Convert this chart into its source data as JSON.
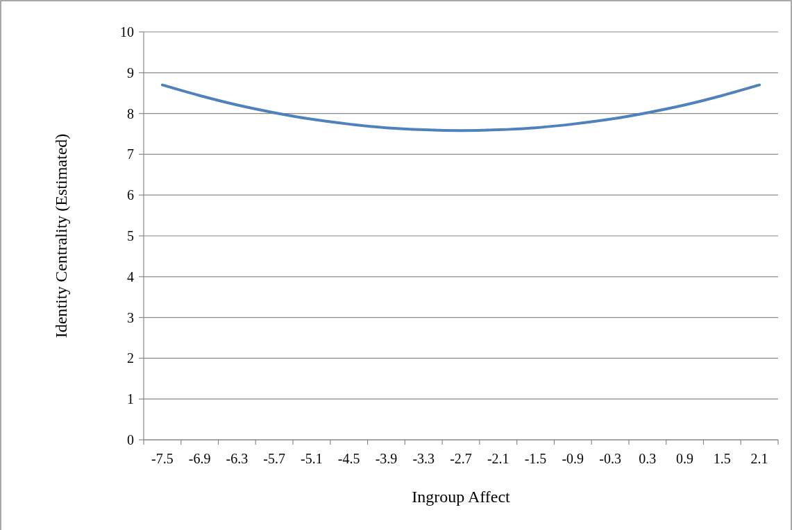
{
  "chart_data": {
    "type": "line",
    "xlabel": "Ingroup Affect",
    "ylabel": "Identity Centrality (Estimated)",
    "categories": [
      "-7.5",
      "-6.9",
      "-6.3",
      "-5.7",
      "-5.1",
      "-4.5",
      "-3.9",
      "-3.3",
      "-2.7",
      "-2.1",
      "-1.5",
      "-0.9",
      "-0.3",
      "0.3",
      "0.9",
      "1.5",
      "2.1"
    ],
    "series": [
      {
        "color": "#4f81bd",
        "values": [
          8.7,
          8.44,
          8.21,
          8.02,
          7.86,
          7.74,
          7.65,
          7.6,
          7.58,
          7.6,
          7.65,
          7.74,
          7.86,
          8.02,
          8.21,
          8.44,
          8.7
        ]
      }
    ],
    "ylim": [
      0,
      10
    ],
    "yticks": [
      0,
      1,
      2,
      3,
      4,
      5,
      6,
      7,
      8,
      9,
      10
    ],
    "grid": "y",
    "marker": "none",
    "line_style": "solid"
  }
}
